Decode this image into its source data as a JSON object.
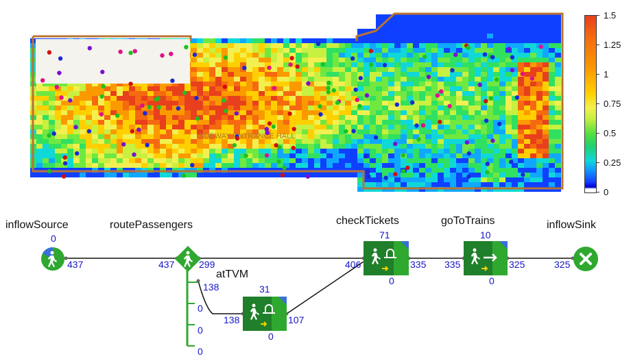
{
  "legend": {
    "ticks": [
      "1.5",
      "1.25",
      "1",
      "0.75",
      "0.5",
      "0.25",
      "0"
    ]
  },
  "heatmap_labels": {
    "hall": "SUBWAY ENTRANCE HALL"
  },
  "blocks": {
    "inflowSource": {
      "name": "inflowSource",
      "top": "0",
      "out": "437"
    },
    "routePassengers": {
      "name": "routePassengers",
      "in": "437",
      "out_main": "299",
      "out1": "138",
      "out2": "0",
      "out3": "0",
      "out4": "0"
    },
    "atTVM": {
      "name": "atTVM",
      "top": "31",
      "in": "138",
      "out": "107",
      "bottom": "0"
    },
    "checkTickets": {
      "name": "checkTickets",
      "top": "71",
      "in": "406",
      "out": "335",
      "bottom": "0"
    },
    "goToTrains": {
      "name": "goToTrains",
      "top": "10",
      "in": "335",
      "out": "325",
      "bottom": "0"
    },
    "inflowSink": {
      "name": "inflowSink",
      "in": "325"
    }
  },
  "colors": {
    "line": "#111111",
    "block_green": "#2fa82f",
    "block_dark": "#1f7f2a",
    "port_blue": "#1515c8"
  }
}
